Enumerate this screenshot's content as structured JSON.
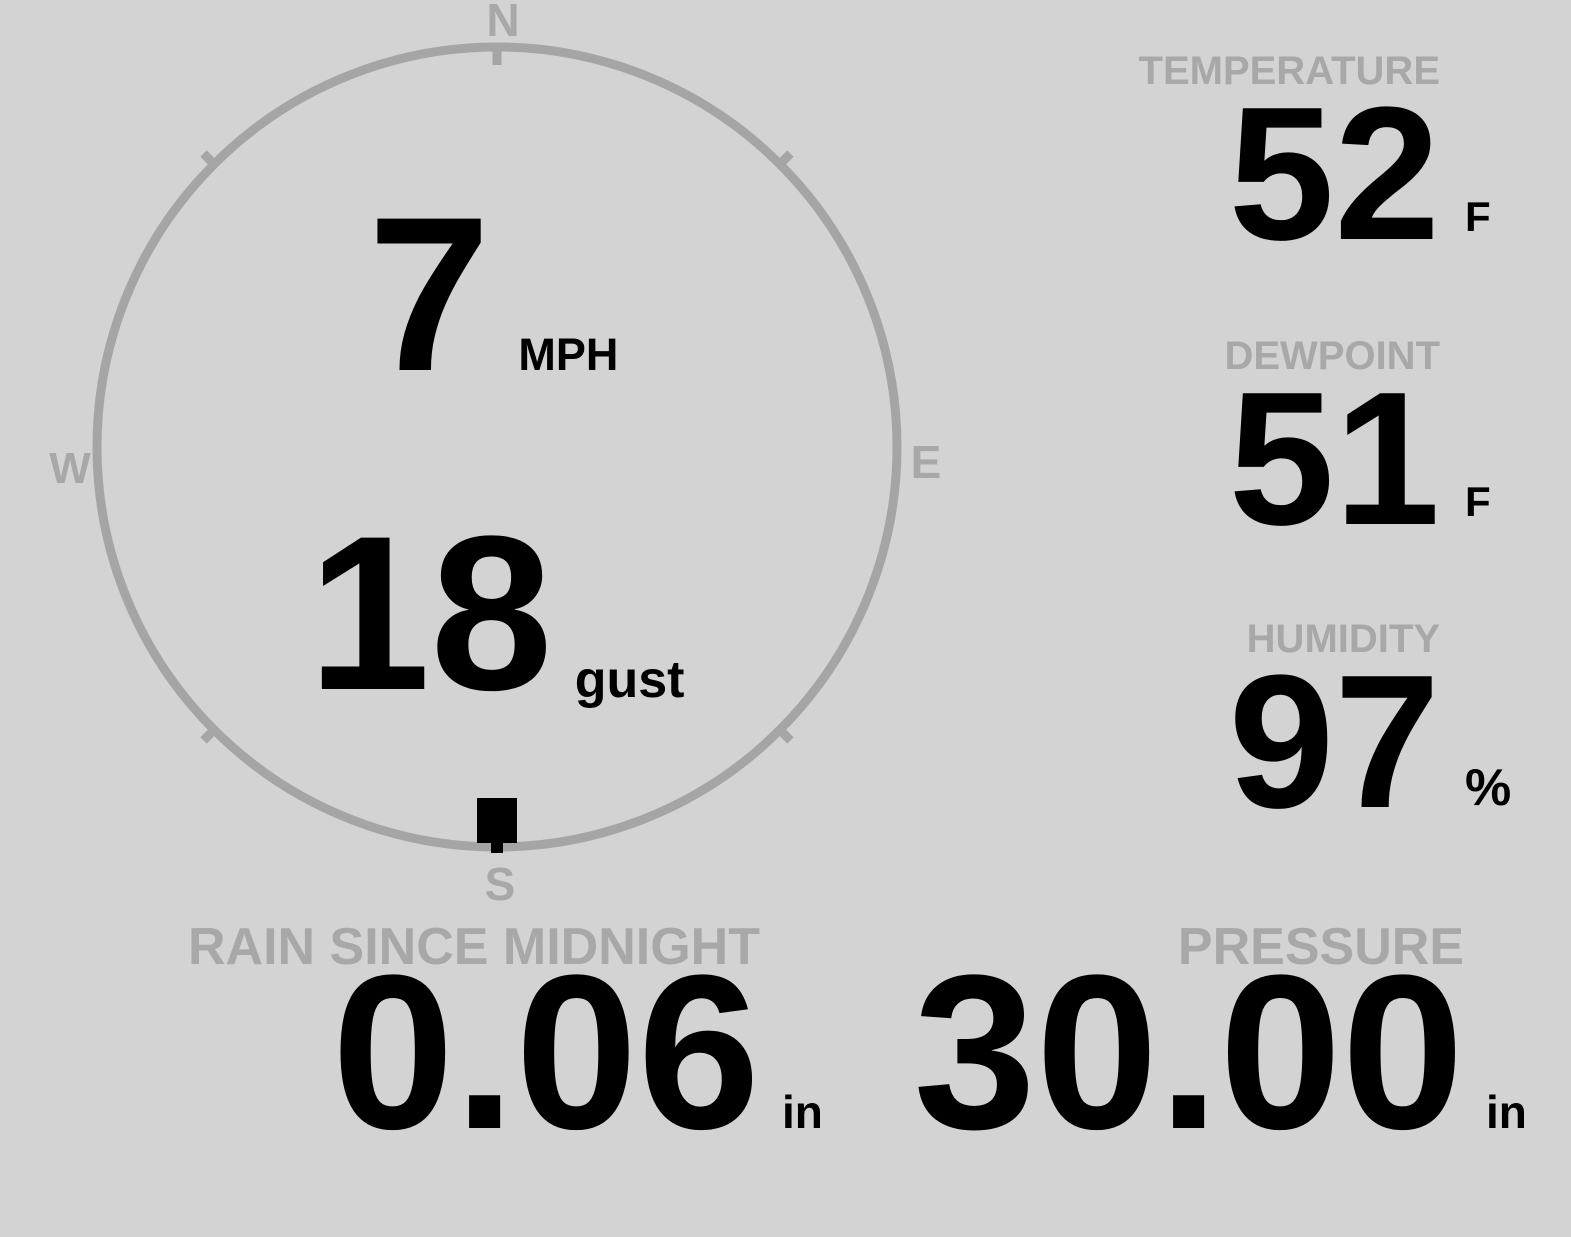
{
  "colors": {
    "background": "#d3d3d3",
    "dial": "#a5a5a5",
    "label": "#a8a8a8",
    "value": "#000000"
  },
  "wind": {
    "speed_value": "7",
    "speed_unit": "MPH",
    "gust_value": "18",
    "gust_label": "gust",
    "direction_deg": 180,
    "compass_labels": {
      "north": "N",
      "east": "E",
      "south": "S",
      "west": "W"
    }
  },
  "panels": {
    "temperature": {
      "label": "TEMPERATURE",
      "value": "52",
      "unit": "F"
    },
    "dewpoint": {
      "label": "DEWPOINT",
      "value": "51",
      "unit": "F"
    },
    "humidity": {
      "label": "HUMIDITY",
      "value": "97",
      "unit": "%"
    },
    "rain_since_midnight": {
      "label": "RAIN SINCE MIDNIGHT",
      "value": "0.06",
      "unit": "in"
    },
    "pressure": {
      "label": "PRESSURE",
      "value": "30.00",
      "unit": "in"
    }
  }
}
